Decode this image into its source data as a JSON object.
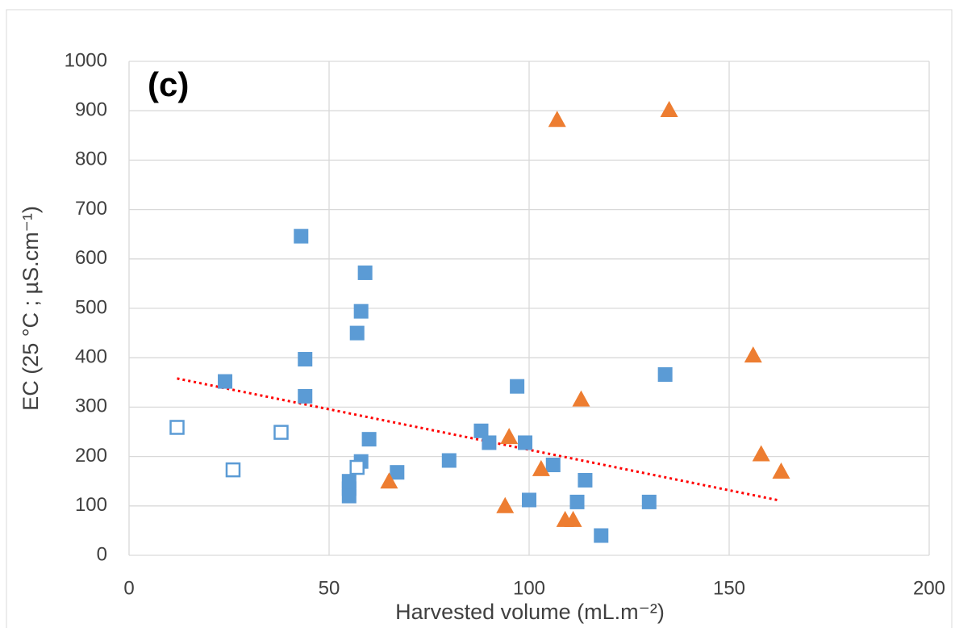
{
  "chart_data": {
    "type": "scatter",
    "annotation": "(c)",
    "x_label": "Harvested volume (mL.m⁻²)",
    "y_label": "EC (25 °C ; µS.cm⁻¹)",
    "xlim": [
      0,
      200
    ],
    "xticks": [
      0,
      50,
      100,
      150,
      200
    ],
    "ylim": [
      0,
      1000
    ],
    "yticks": [
      0,
      100,
      200,
      300,
      400,
      500,
      600,
      700,
      800,
      900,
      1000
    ],
    "grid": true,
    "series": [
      {
        "marker": "square",
        "color": "#5b9bd5",
        "x": [
          24,
          43,
          44,
          44,
          55,
          55,
          55,
          57,
          58,
          58,
          59,
          60,
          67,
          80,
          88,
          90,
          97,
          99,
          100,
          106,
          112,
          114,
          118,
          130,
          134
        ],
        "values": [
          352,
          646,
          397,
          322,
          150,
          135,
          120,
          450,
          494,
          190,
          572,
          235,
          168,
          192,
          252,
          228,
          342,
          228,
          112,
          183,
          108,
          152,
          40,
          108,
          366
        ]
      },
      {
        "marker": "open-square",
        "color": "#5b9bd5",
        "x": [
          12,
          26,
          38,
          57
        ],
        "values": [
          259,
          173,
          249,
          178
        ]
      },
      {
        "marker": "triangle",
        "color": "#ed7d31",
        "x": [
          65,
          94,
          95,
          103,
          107,
          109,
          111,
          113,
          135,
          156,
          158,
          163
        ],
        "values": [
          150,
          100,
          240,
          175,
          882,
          72,
          72,
          316,
          902,
          405,
          205,
          170
        ]
      }
    ],
    "trendline": {
      "color": "#ff0000",
      "x": [
        12,
        162
      ],
      "values": [
        358,
        112
      ]
    }
  }
}
